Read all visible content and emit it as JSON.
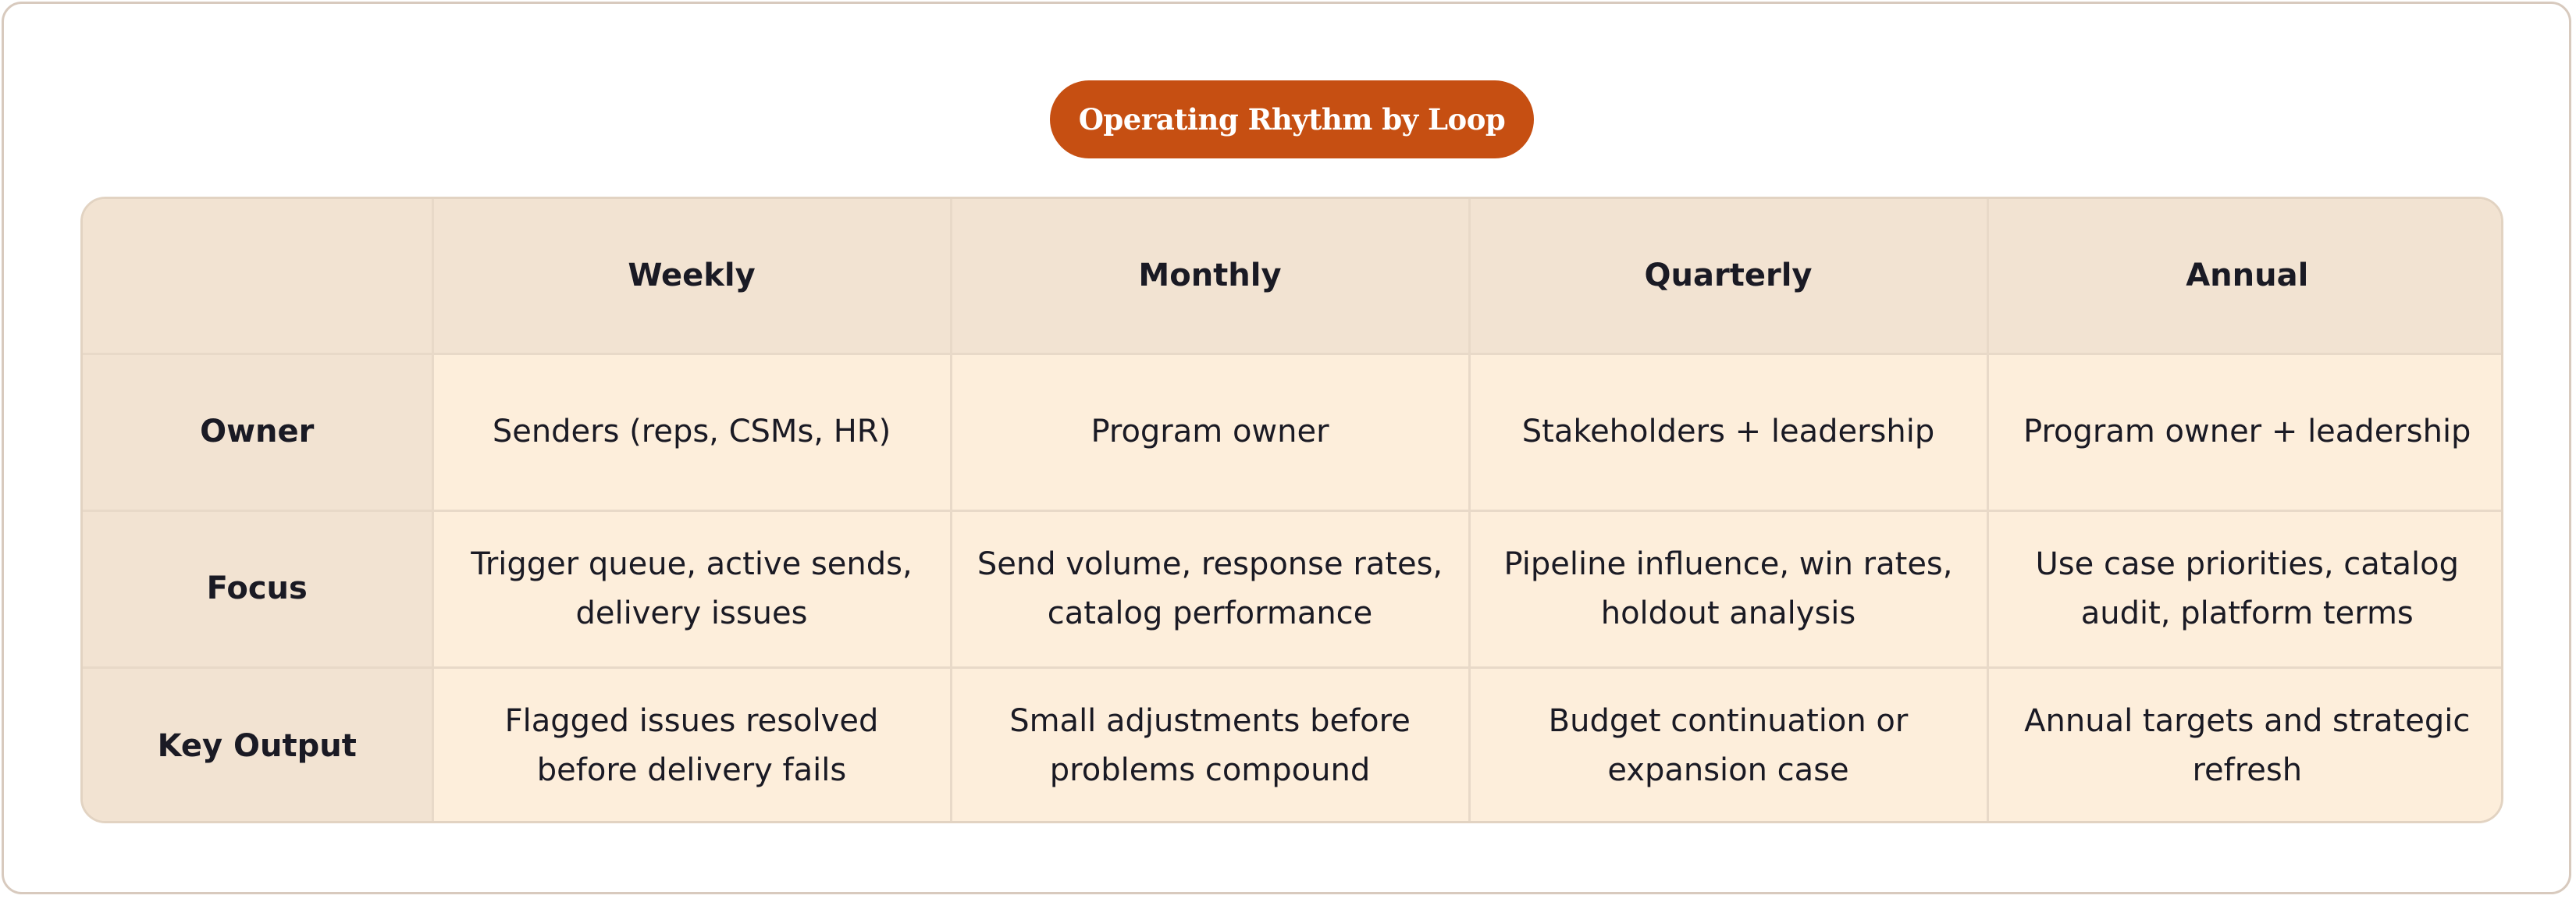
{
  "title": "Operating Rhythm by Loop",
  "table": {
    "corner": "",
    "columns": [
      "Weekly",
      "Monthly",
      "Quarterly",
      "Annual"
    ],
    "rows": [
      {
        "label": "Owner",
        "cells": [
          "Senders (reps, CSMs, HR)",
          "Program owner",
          "Stakeholders + leadership",
          "Program owner + leadership"
        ]
      },
      {
        "label": "Focus",
        "cells": [
          "Trigger queue, active sends, delivery issues",
          "Send volume, response rates, catalog performance",
          "Pipeline influence, win rates, holdout analysis",
          "Use case priorities, catalog audit, platform terms"
        ]
      },
      {
        "label": "Key Output",
        "cells": [
          "Flagged issues resolved before delivery fails",
          "Small adjustments before problems compound",
          "Budget continuation or expansion case",
          "Annual targets and strategic refresh"
        ]
      }
    ]
  },
  "colors": {
    "title_bg": "#c64f12",
    "header_bg": "#f2e3d2",
    "cell_bg": "#fdeedb",
    "border": "#e8d9c8",
    "text": "#1a1a24"
  }
}
